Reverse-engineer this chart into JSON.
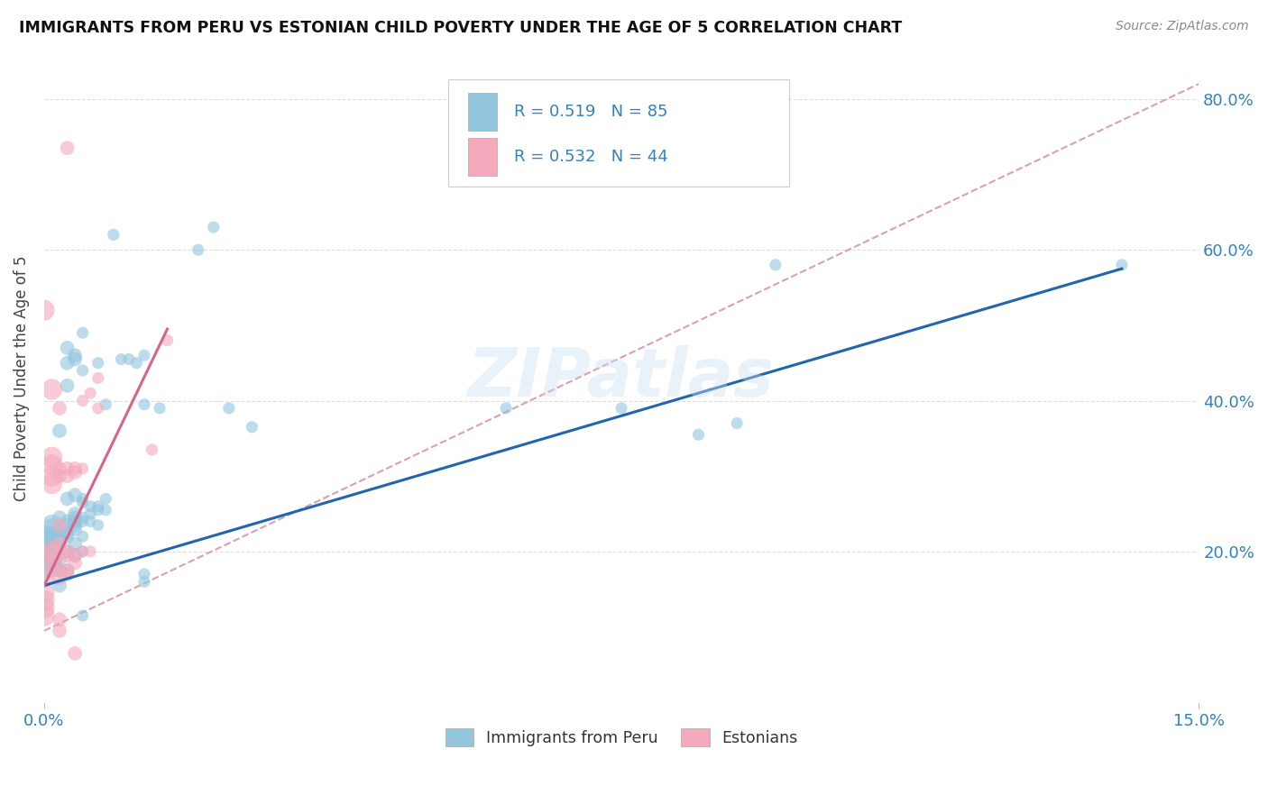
{
  "title": "IMMIGRANTS FROM PERU VS ESTONIAN CHILD POVERTY UNDER THE AGE OF 5 CORRELATION CHART",
  "source": "Source: ZipAtlas.com",
  "ylabel": "Child Poverty Under the Age of 5",
  "legend_blue_r": "0.519",
  "legend_blue_n": "85",
  "legend_pink_r": "0.532",
  "legend_pink_n": "44",
  "legend_label_blue": "Immigrants from Peru",
  "legend_label_pink": "Estonians",
  "blue_color": "#92c5de",
  "pink_color": "#f4a9bc",
  "blue_line_color": "#2166ac",
  "pink_line_color": "#d9638a",
  "dashed_line_color": "#d9a0b0",
  "text_color_blue": "#3182bd",
  "background_color": "#ffffff",
  "xlim": [
    0.0,
    0.15
  ],
  "ylim": [
    0.0,
    0.86
  ],
  "watermark": "ZIPatlas",
  "blue_scatter": [
    [
      0.0,
      0.2
    ],
    [
      0.0,
      0.19
    ],
    [
      0.0,
      0.22
    ],
    [
      0.0,
      0.18
    ],
    [
      0.0,
      0.21
    ],
    [
      0.0,
      0.195
    ],
    [
      0.0,
      0.205
    ],
    [
      0.0,
      0.215
    ],
    [
      0.0,
      0.185
    ],
    [
      0.0,
      0.175
    ],
    [
      0.001,
      0.2
    ],
    [
      0.001,
      0.22
    ],
    [
      0.001,
      0.235
    ],
    [
      0.001,
      0.19
    ],
    [
      0.001,
      0.21
    ],
    [
      0.001,
      0.23
    ],
    [
      0.001,
      0.215
    ],
    [
      0.001,
      0.2
    ],
    [
      0.001,
      0.18
    ],
    [
      0.002,
      0.36
    ],
    [
      0.002,
      0.22
    ],
    [
      0.002,
      0.21
    ],
    [
      0.002,
      0.155
    ],
    [
      0.002,
      0.175
    ],
    [
      0.002,
      0.245
    ],
    [
      0.002,
      0.225
    ],
    [
      0.002,
      0.215
    ],
    [
      0.002,
      0.19
    ],
    [
      0.003,
      0.47
    ],
    [
      0.003,
      0.45
    ],
    [
      0.003,
      0.27
    ],
    [
      0.003,
      0.235
    ],
    [
      0.003,
      0.2
    ],
    [
      0.003,
      0.42
    ],
    [
      0.003,
      0.24
    ],
    [
      0.003,
      0.225
    ],
    [
      0.003,
      0.22
    ],
    [
      0.003,
      0.175
    ],
    [
      0.004,
      0.455
    ],
    [
      0.004,
      0.25
    ],
    [
      0.004,
      0.245
    ],
    [
      0.004,
      0.235
    ],
    [
      0.004,
      0.21
    ],
    [
      0.004,
      0.46
    ],
    [
      0.004,
      0.275
    ],
    [
      0.004,
      0.24
    ],
    [
      0.004,
      0.23
    ],
    [
      0.004,
      0.195
    ],
    [
      0.005,
      0.49
    ],
    [
      0.005,
      0.265
    ],
    [
      0.005,
      0.24
    ],
    [
      0.005,
      0.22
    ],
    [
      0.005,
      0.2
    ],
    [
      0.005,
      0.44
    ],
    [
      0.005,
      0.27
    ],
    [
      0.005,
      0.245
    ],
    [
      0.005,
      0.115
    ],
    [
      0.006,
      0.26
    ],
    [
      0.006,
      0.25
    ],
    [
      0.006,
      0.24
    ],
    [
      0.007,
      0.45
    ],
    [
      0.007,
      0.26
    ],
    [
      0.007,
      0.255
    ],
    [
      0.007,
      0.235
    ],
    [
      0.008,
      0.395
    ],
    [
      0.008,
      0.27
    ],
    [
      0.008,
      0.255
    ],
    [
      0.013,
      0.395
    ],
    [
      0.013,
      0.17
    ],
    [
      0.013,
      0.16
    ],
    [
      0.015,
      0.39
    ],
    [
      0.02,
      0.6
    ],
    [
      0.022,
      0.63
    ],
    [
      0.024,
      0.39
    ],
    [
      0.027,
      0.365
    ],
    [
      0.01,
      0.455
    ],
    [
      0.011,
      0.455
    ],
    [
      0.012,
      0.45
    ],
    [
      0.013,
      0.46
    ],
    [
      0.09,
      0.37
    ],
    [
      0.085,
      0.355
    ],
    [
      0.095,
      0.58
    ],
    [
      0.009,
      0.62
    ],
    [
      0.06,
      0.39
    ],
    [
      0.075,
      0.39
    ],
    [
      0.14,
      0.58
    ]
  ],
  "pink_scatter": [
    [
      0.0,
      0.165
    ],
    [
      0.0,
      0.145
    ],
    [
      0.0,
      0.135
    ],
    [
      0.0,
      0.125
    ],
    [
      0.0,
      0.115
    ],
    [
      0.0,
      0.52
    ],
    [
      0.001,
      0.415
    ],
    [
      0.001,
      0.325
    ],
    [
      0.001,
      0.315
    ],
    [
      0.001,
      0.3
    ],
    [
      0.001,
      0.29
    ],
    [
      0.001,
      0.2
    ],
    [
      0.001,
      0.195
    ],
    [
      0.001,
      0.185
    ],
    [
      0.002,
      0.39
    ],
    [
      0.002,
      0.31
    ],
    [
      0.002,
      0.3
    ],
    [
      0.002,
      0.235
    ],
    [
      0.002,
      0.21
    ],
    [
      0.002,
      0.175
    ],
    [
      0.002,
      0.165
    ],
    [
      0.002,
      0.11
    ],
    [
      0.002,
      0.095
    ],
    [
      0.003,
      0.31
    ],
    [
      0.003,
      0.3
    ],
    [
      0.003,
      0.2
    ],
    [
      0.003,
      0.195
    ],
    [
      0.003,
      0.175
    ],
    [
      0.003,
      0.17
    ],
    [
      0.004,
      0.31
    ],
    [
      0.004,
      0.305
    ],
    [
      0.004,
      0.195
    ],
    [
      0.004,
      0.185
    ],
    [
      0.004,
      0.065
    ],
    [
      0.005,
      0.4
    ],
    [
      0.005,
      0.31
    ],
    [
      0.005,
      0.2
    ],
    [
      0.006,
      0.41
    ],
    [
      0.006,
      0.2
    ],
    [
      0.007,
      0.39
    ],
    [
      0.003,
      0.735
    ],
    [
      0.007,
      0.43
    ],
    [
      0.014,
      0.335
    ],
    [
      0.016,
      0.48
    ]
  ],
  "blue_line_x": [
    0.0,
    0.14
  ],
  "blue_line_y": [
    0.155,
    0.575
  ],
  "pink_line_x": [
    0.0,
    0.016
  ],
  "pink_line_y": [
    0.155,
    0.495
  ],
  "dash_line_x": [
    0.0,
    0.15
  ],
  "dash_line_y": [
    0.095,
    0.82
  ],
  "ytick_vals": [
    0.2,
    0.4,
    0.6,
    0.8
  ]
}
